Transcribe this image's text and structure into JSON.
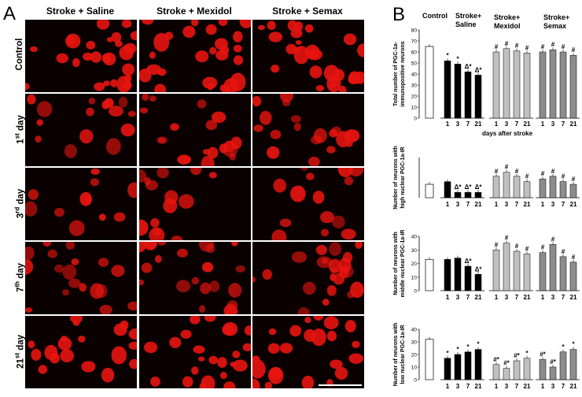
{
  "panel_a": {
    "letter": "A",
    "columns": [
      "Stroke + Saline",
      "Stroke + Mexidol",
      "Stroke + Semax"
    ],
    "rows": [
      {
        "main": "Control",
        "sup": ""
      },
      {
        "main": "1",
        "sup": "st",
        "tail": " day"
      },
      {
        "main": "3",
        "sup": "rd",
        "tail": " day"
      },
      {
        "main": "7",
        "sup": "th",
        "tail": " day"
      },
      {
        "main": "21",
        "sup": "st",
        "tail": " day"
      }
    ],
    "cell_color": "#e8140f"
  },
  "panel_b": {
    "letter": "B",
    "group_labels": {
      "control": "Control",
      "saline": [
        "Stroke+",
        "Saline"
      ],
      "mexidol": [
        "Stroke+",
        "Mexidol"
      ],
      "semax": [
        "Stroke+",
        "Semax"
      ]
    },
    "xlabel": "days after stroke",
    "colors": {
      "control": "#ffffff",
      "saline": "#000000",
      "mexidol": "#c0c0c0",
      "semax": "#8c8c8c"
    }
  },
  "chart_data": [
    {
      "type": "bar",
      "ylabel": [
        "Total number of PGC-1a-",
        "immunopositive neurons"
      ],
      "ylim": [
        0,
        80
      ],
      "yticks": [
        0,
        10,
        20,
        30,
        40,
        50,
        60,
        70,
        80
      ],
      "categories": [
        "1",
        "3",
        "7",
        "21"
      ],
      "control": 65,
      "series": [
        {
          "name": "Stroke+ Saline",
          "values": [
            52,
            49,
            42,
            39
          ],
          "marks": [
            "*",
            "*",
            "Δ*",
            "Δ*"
          ]
        },
        {
          "name": "Stroke+ Mexidol",
          "values": [
            60,
            63,
            61,
            59
          ],
          "marks": [
            "#",
            "#",
            "#",
            "#"
          ]
        },
        {
          "name": "Stroke+ Semax",
          "values": [
            60,
            62,
            60,
            57
          ],
          "marks": [
            "#",
            "#",
            "#",
            "#"
          ]
        }
      ],
      "xlabel": "days after stroke"
    },
    {
      "type": "bar",
      "ylabel": [
        "Number of neurons with",
        "high nuclear PGC-1a-IR"
      ],
      "ylim": [
        0,
        30
      ],
      "categories": [
        "1",
        "3",
        "7",
        "21"
      ],
      "control": 10,
      "series": [
        {
          "name": "Stroke+ Saline",
          "values": [
            12,
            4,
            4,
            4
          ],
          "marks": [
            "",
            "Δ*",
            "Δ*",
            "Δ*"
          ]
        },
        {
          "name": "Stroke+ Mexidol",
          "values": [
            16,
            19,
            16,
            12
          ],
          "marks": [
            "#",
            "#",
            "#",
            "#"
          ]
        },
        {
          "name": "Stroke+ Semax",
          "values": [
            14,
            16,
            12,
            10
          ],
          "marks": [
            "#",
            "#",
            "#",
            "#"
          ]
        }
      ]
    },
    {
      "type": "bar",
      "ylabel": [
        "Number of neurons with",
        "middle nuclear PGC-1a-IR"
      ],
      "ylim": [
        0,
        40
      ],
      "yticks": [
        0,
        10,
        20,
        30,
        40
      ],
      "categories": [
        "1",
        "3",
        "7",
        "21"
      ],
      "control": 23,
      "series": [
        {
          "name": "Stroke+ Saline",
          "values": [
            23,
            24,
            18,
            12
          ],
          "marks": [
            "",
            "",
            "Δ*",
            "Δ*"
          ]
        },
        {
          "name": "Stroke+ Mexidol",
          "values": [
            30,
            35,
            29,
            27
          ],
          "marks": [
            "#",
            "#",
            "#",
            "#"
          ]
        },
        {
          "name": "Stroke+ Semax",
          "values": [
            28,
            34,
            25,
            21
          ],
          "marks": [
            "#",
            "#",
            "#",
            "#"
          ]
        }
      ]
    },
    {
      "type": "bar",
      "ylabel": [
        "Number of neurons with",
        "low nuclear PGC-1a-IR"
      ],
      "ylim": [
        0,
        40
      ],
      "yticks": [
        0,
        10,
        20,
        30,
        40
      ],
      "categories": [
        "1",
        "3",
        "7",
        "21"
      ],
      "control": 32,
      "series": [
        {
          "name": "Stroke+ Saline",
          "values": [
            17,
            20,
            22,
            24
          ],
          "marks": [
            "*",
            "*",
            "*",
            "*"
          ]
        },
        {
          "name": "Stroke+ Mexidol",
          "values": [
            12,
            9,
            15,
            17
          ],
          "marks": [
            "#*",
            "#*",
            "#*",
            "*"
          ]
        },
        {
          "name": "Stroke+ Semax",
          "values": [
            16,
            10,
            22,
            24
          ],
          "marks": [
            "#*",
            "#*",
            "*",
            "*"
          ]
        }
      ]
    }
  ]
}
